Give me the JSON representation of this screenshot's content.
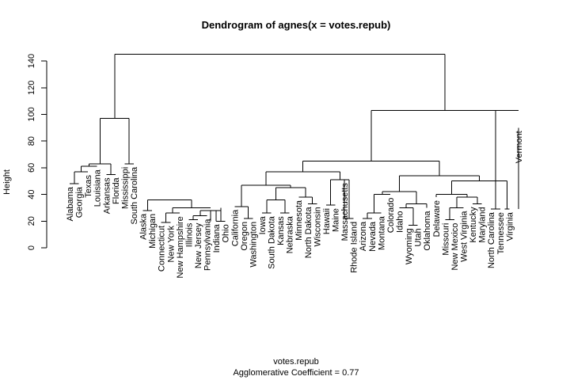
{
  "chart_data": {
    "type": "dendrogram",
    "title": "Dendrogram of  agnes(x = votes.repub)",
    "ylabel": "Height",
    "xlabel": "votes.repub",
    "subtitle": "Agglomerative Coefficient =  0.77",
    "ylim": [
      0,
      150
    ],
    "yticks": [
      0,
      20,
      40,
      60,
      80,
      100,
      120,
      140
    ],
    "leaves": [
      {
        "label": "Alabama",
        "end": 48
      },
      {
        "label": "Georgia",
        "end": 48
      },
      {
        "label": "Texas",
        "end": 57
      },
      {
        "label": "Louisiana",
        "end": 61
      },
      {
        "label": "Arkansas",
        "end": 55
      },
      {
        "label": "Florida",
        "end": 55
      },
      {
        "label": "Mississippi",
        "end": 63
      },
      {
        "label": "South Carolina",
        "end": 63
      },
      {
        "label": "Alaska",
        "end": 28
      },
      {
        "label": "Michigan",
        "end": 28
      },
      {
        "label": "Connecticut",
        "end": 19
      },
      {
        "label": "New York",
        "end": 19
      },
      {
        "label": "New Hampshire",
        "end": 26
      },
      {
        "label": "Illinois",
        "end": 21
      },
      {
        "label": "New Jersey",
        "end": 21
      },
      {
        "label": "Pennsylvania",
        "end": 24
      },
      {
        "label": "Indiana",
        "end": 20
      },
      {
        "label": "Ohio",
        "end": 20
      },
      {
        "label": "California",
        "end": 31
      },
      {
        "label": "Oregon",
        "end": 22
      },
      {
        "label": "Washington",
        "end": 22
      },
      {
        "label": "Iowa",
        "end": 26
      },
      {
        "label": "South Dakota",
        "end": 26
      },
      {
        "label": "Kansas",
        "end": 26
      },
      {
        "label": "Nebraska",
        "end": 26
      },
      {
        "label": "Minnesota",
        "end": 38
      },
      {
        "label": "North Dakota",
        "end": 33
      },
      {
        "label": "Wisconsin",
        "end": 33
      },
      {
        "label": "Hawaii",
        "end": 32
      },
      {
        "label": "Maine",
        "end": 32
      },
      {
        "label": "Massachusetts",
        "end": 51
      },
      {
        "label": "Rhode Island",
        "end": 22
      },
      {
        "label": "Arizona",
        "end": 22
      },
      {
        "label": "Nevada",
        "end": 22
      },
      {
        "label": "Montana",
        "end": 26
      },
      {
        "label": "Colorado",
        "end": 40
      },
      {
        "label": "Idaho",
        "end": 30
      },
      {
        "label": "Wyoming",
        "end": 17
      },
      {
        "label": "Utah",
        "end": 17
      },
      {
        "label": "Oklahoma",
        "end": 30
      },
      {
        "label": "Delaware",
        "end": 38
      },
      {
        "label": "Missouri",
        "end": 21
      },
      {
        "label": "New Mexico",
        "end": 21
      },
      {
        "label": "West Virginia",
        "end": 30
      },
      {
        "label": "Kentucky",
        "end": 33
      },
      {
        "label": "Maryland",
        "end": 33
      },
      {
        "label": "North Carolina",
        "end": 29
      },
      {
        "label": "Tennessee",
        "end": 29
      },
      {
        "label": "Virginia",
        "end": 29
      },
      {
        "label": "Vermont",
        "end": 90
      }
    ],
    "merges": [
      {
        "h": 48,
        "left": 0,
        "right": 1
      },
      {
        "h": 57,
        "left": 0.5,
        "right": 2
      },
      {
        "h": 61,
        "left": 1.25,
        "right": 3
      },
      {
        "h": 55,
        "left": 4,
        "right": 5
      },
      {
        "h": 63,
        "left": 2.125,
        "right": 4.5
      },
      {
        "h": 63,
        "left": 6,
        "right": 7
      },
      {
        "h": 97,
        "left": 3.3125,
        "right": 6.5
      },
      {
        "h": 28,
        "left": 8,
        "right": 9
      },
      {
        "h": 19,
        "left": 10,
        "right": 11
      },
      {
        "h": 26,
        "left": 10.5,
        "right": 12
      },
      {
        "h": 21,
        "left": 13,
        "right": 14
      },
      {
        "h": 24,
        "left": 13.5,
        "right": 15
      },
      {
        "h": 28,
        "left": 14.25,
        "right": 16.5
      },
      {
        "h": 20,
        "left": 16,
        "right": 17
      },
      {
        "h": 30,
        "left": 11.25,
        "right": 15.375
      },
      {
        "h": 36,
        "left": 8.5,
        "right": 13.3125
      },
      {
        "h": 22,
        "left": 19,
        "right": 20
      },
      {
        "h": 31,
        "left": 18,
        "right": 19.5
      },
      {
        "h": 26,
        "left": 21,
        "right": 22
      },
      {
        "h": 26,
        "left": 23,
        "right": 24
      },
      {
        "h": 36,
        "left": 21.5,
        "right": 23.5
      },
      {
        "h": 33,
        "left": 26,
        "right": 27
      },
      {
        "h": 38,
        "left": 25,
        "right": 26.5
      },
      {
        "h": 45,
        "left": 22.5,
        "right": 25.75
      },
      {
        "h": 32,
        "left": 28,
        "right": 29
      },
      {
        "h": 22,
        "left": 30,
        "right": 31
      },
      {
        "h": 51,
        "left": 28.5,
        "right": 30.5
      },
      {
        "h": 47,
        "left": 18.75,
        "right": 24.125
      },
      {
        "h": 57,
        "left": 21.4375,
        "right": 29.5
      },
      {
        "h": 22,
        "left": 32,
        "right": 33
      },
      {
        "h": 26,
        "left": 32.5,
        "right": 34
      },
      {
        "h": 17,
        "left": 37,
        "right": 38
      },
      {
        "h": 30,
        "left": 36,
        "right": 37.5
      },
      {
        "h": 33,
        "left": 36.75,
        "right": 39
      },
      {
        "h": 40,
        "left": 33.25,
        "right": 35
      },
      {
        "h": 42,
        "left": 34.125,
        "right": 37.875
      },
      {
        "h": 21,
        "left": 41,
        "right": 42
      },
      {
        "h": 30,
        "left": 41.5,
        "right": 43
      },
      {
        "h": 33,
        "left": 44,
        "right": 45
      },
      {
        "h": 38,
        "left": 42.25,
        "right": 44.5
      },
      {
        "h": 40,
        "left": 40,
        "right": 43.375
      },
      {
        "h": 29,
        "left": 46,
        "right": 47
      },
      {
        "h": 29,
        "left": 47.5,
        "right": 48
      },
      {
        "h": 50,
        "left": 41.6875,
        "right": 47.75
      },
      {
        "h": 54,
        "left": 36,
        "right": 44.71875
      },
      {
        "h": 65,
        "left": 25.46875,
        "right": 40.359375
      },
      {
        "h": 103,
        "left": 32.9140625,
        "right": 49
      },
      {
        "h": 145,
        "left": 4.90625,
        "right": 40.95703125
      }
    ]
  }
}
